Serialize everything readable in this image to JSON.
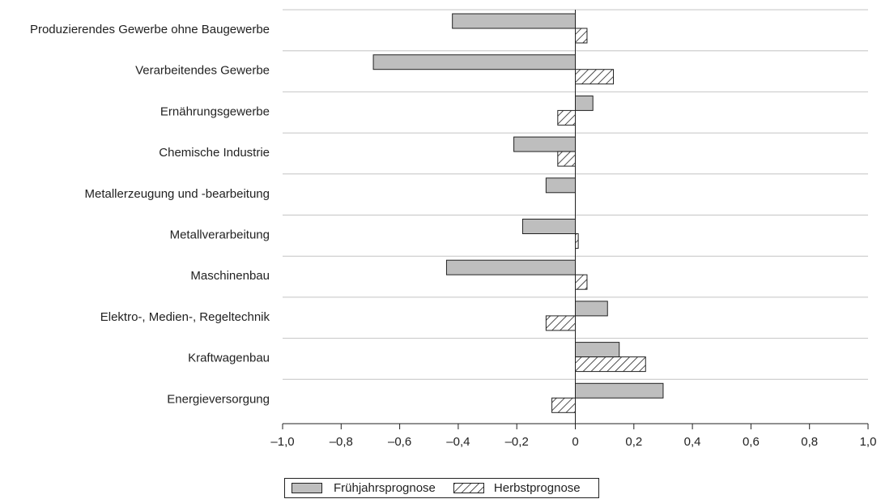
{
  "chart_data": {
    "type": "bar",
    "orientation": "horizontal",
    "categories": [
      "Produzierendes Gewerbe ohne Baugewerbe",
      "Verarbeitendes Gewerbe",
      "Ernährungsgewerbe",
      "Chemische Industrie",
      "Metallerzeugung und -bearbeitung",
      "Metallverarbeitung",
      "Maschinenbau",
      "Elektro-, Medien-, Regeltechnik",
      "Kraftwagenbau",
      "Energieversorgung"
    ],
    "series": [
      {
        "name": "Frühjahrsprognose",
        "values": [
          -0.42,
          -0.69,
          0.06,
          -0.21,
          -0.1,
          -0.18,
          -0.44,
          0.11,
          0.15,
          0.3
        ],
        "color": "#bebebe",
        "pattern": "solid"
      },
      {
        "name": "Herbstprognose",
        "values": [
          0.04,
          0.13,
          -0.06,
          -0.06,
          0.0,
          0.01,
          0.04,
          -0.1,
          0.24,
          -0.08
        ],
        "color": "#ffffff",
        "pattern": "diagonal-hatch"
      }
    ],
    "xlim": [
      -1.0,
      1.0
    ],
    "xticks": [
      -1.0,
      -0.8,
      -0.6,
      -0.4,
      -0.2,
      0,
      0.2,
      0.4,
      0.6,
      0.8,
      1.0
    ],
    "xtick_labels": [
      "–1,0",
      "–0,8",
      "–0,6",
      "–0,4",
      "–0,2",
      "0",
      "0,2",
      "0,4",
      "0,6",
      "0,8",
      "1,0"
    ],
    "grid": "horizontal separators between categories",
    "legend_position": "bottom-center",
    "title": "",
    "xlabel": "",
    "ylabel": ""
  }
}
